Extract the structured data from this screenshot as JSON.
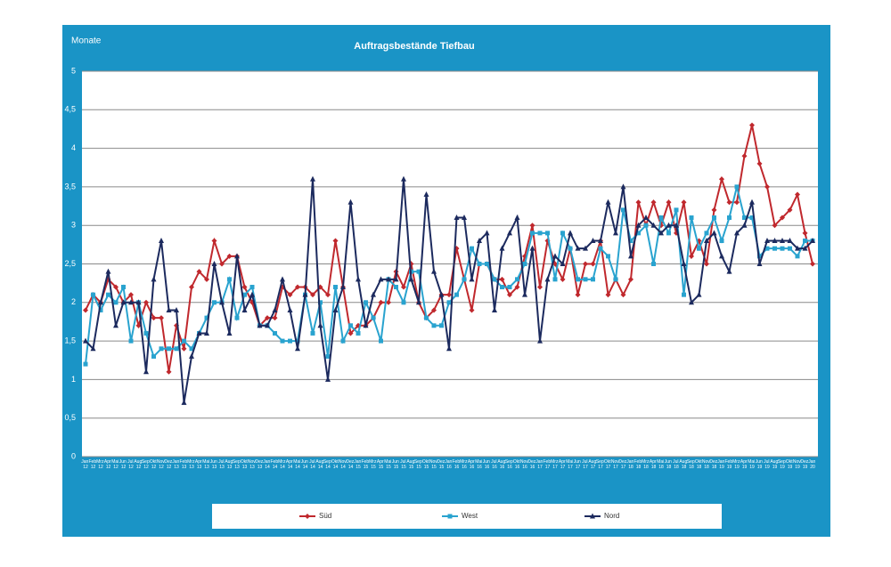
{
  "chart_data": {
    "type": "line",
    "title": "Auftragsbestände Tiefbau",
    "y_label": "Monate",
    "categories": [
      "Jan 12",
      "Feb 12",
      "Mrz 12",
      "Apr 12",
      "Mai 12",
      "Jun 12",
      "Jul 12",
      "Aug 12",
      "Sep 12",
      "Okt 12",
      "Nov 12",
      "Dez 12",
      "Jan 13",
      "Feb 13",
      "Mrz 13",
      "Apr 13",
      "Mai 13",
      "Jun 13",
      "Jul 13",
      "Aug 13",
      "Sep 13",
      "Okt 13",
      "Nov 13",
      "Dez 13",
      "Jan 14",
      "Feb 14",
      "Mrz 14",
      "Apr 14",
      "Mai 14",
      "Jun 14",
      "Jul 14",
      "Aug 14",
      "Sep 14",
      "Okt 14",
      "Nov 14",
      "Dez 14",
      "Jan 15",
      "Feb 15",
      "Mrz 15",
      "Apr 15",
      "Mai 15",
      "Jun 15",
      "Jul 15",
      "Aug 15",
      "Sep 15",
      "Okt 15",
      "Nov 15",
      "Dez 15",
      "Jan 16",
      "Feb 16",
      "Mrz 16",
      "Apr 16",
      "Mai 16",
      "Jun 16",
      "Jul 16",
      "Aug 16",
      "Sep 16",
      "Okt 16",
      "Nov 16",
      "Dez 16",
      "Jan 17",
      "Feb 17",
      "Mrz 17",
      "Apr 17",
      "Mai 17",
      "Jun 17",
      "Jul 17",
      "Aug 17",
      "Sep 17",
      "Okt 17",
      "Nov 17",
      "Dez 17",
      "Jan 18",
      "Feb 18",
      "Mrz 18",
      "Apr 18",
      "Mai 18",
      "Jun 18",
      "Jul 18",
      "Aug 18",
      "Sep 18",
      "Okt 18",
      "Nov 18",
      "Dez 18",
      "Jan 19",
      "Feb 19",
      "Mrz 19",
      "Apr 19",
      "Mai 19",
      "Jun 19",
      "Jul 19",
      "Aug 19",
      "Sep 19",
      "Okt 19",
      "Nov 19",
      "Dez 19",
      "Jan 20"
    ],
    "series": [
      {
        "name": "Süd",
        "color": "#c0282d",
        "marker": "diamond",
        "values": [
          1.9,
          2.1,
          2.0,
          2.3,
          2.2,
          2.0,
          2.1,
          1.7,
          2.0,
          1.8,
          1.8,
          1.1,
          1.7,
          1.4,
          2.2,
          2.4,
          2.3,
          2.8,
          2.5,
          2.6,
          2.6,
          2.2,
          2.0,
          1.7,
          1.8,
          1.8,
          2.2,
          2.1,
          2.2,
          2.2,
          2.1,
          2.2,
          2.1,
          2.8,
          2.2,
          1.6,
          1.7,
          1.7,
          1.8,
          2.0,
          2.0,
          2.4,
          2.2,
          2.5,
          2.0,
          1.8,
          1.9,
          2.1,
          2.1,
          2.7,
          2.3,
          1.9,
          2.5,
          2.5,
          2.3,
          2.3,
          2.1,
          2.2,
          2.6,
          3.0,
          2.2,
          2.8,
          2.5,
          2.3,
          2.7,
          2.1,
          2.5,
          2.5,
          2.8,
          2.1,
          2.3,
          2.1,
          2.3,
          3.3,
          3.0,
          3.3,
          3.0,
          3.3,
          2.9,
          3.3,
          2.6,
          2.8,
          2.5,
          3.2,
          3.6,
          3.3,
          3.3,
          3.9,
          4.3,
          3.8,
          3.5,
          3.0,
          3.1,
          3.2,
          3.4,
          2.9,
          2.5
        ]
      },
      {
        "name": "West",
        "color": "#29a3cf",
        "marker": "square",
        "values": [
          1.2,
          2.1,
          1.9,
          2.1,
          2.0,
          2.2,
          1.5,
          2.0,
          1.6,
          1.3,
          1.4,
          1.4,
          1.4,
          1.5,
          1.4,
          1.6,
          1.8,
          2.0,
          2.0,
          2.3,
          1.8,
          2.1,
          2.2,
          1.7,
          1.7,
          1.6,
          1.5,
          1.5,
          1.5,
          2.1,
          1.6,
          2.0,
          1.3,
          2.2,
          1.5,
          1.7,
          1.6,
          2.0,
          1.8,
          1.5,
          2.3,
          2.2,
          2.0,
          2.4,
          2.4,
          1.8,
          1.7,
          1.7,
          2.0,
          2.1,
          2.3,
          2.7,
          2.5,
          2.5,
          2.3,
          2.2,
          2.2,
          2.3,
          2.5,
          2.9,
          2.9,
          2.9,
          2.3,
          2.9,
          2.7,
          2.3,
          2.3,
          2.3,
          2.7,
          2.6,
          2.3,
          3.2,
          2.8,
          2.9,
          3.0,
          2.5,
          3.1,
          2.9,
          3.2,
          2.1,
          3.1,
          2.7,
          2.9,
          3.1,
          2.8,
          3.1,
          3.5,
          3.1,
          3.1,
          2.6,
          2.7,
          2.7,
          2.7,
          2.7,
          2.6,
          2.8,
          2.8
        ]
      },
      {
        "name": "Nord",
        "color": "#1c2a5e",
        "marker": "triangle",
        "values": [
          1.5,
          1.4,
          2.0,
          2.4,
          1.7,
          2.0,
          2.0,
          2.0,
          1.1,
          2.3,
          2.8,
          1.9,
          1.9,
          0.7,
          1.3,
          1.6,
          1.6,
          2.5,
          2.0,
          1.6,
          2.6,
          1.9,
          2.1,
          1.7,
          1.7,
          1.9,
          2.3,
          1.9,
          1.4,
          2.1,
          3.6,
          1.7,
          1.0,
          1.9,
          2.2,
          3.3,
          2.3,
          1.7,
          2.1,
          2.3,
          2.3,
          2.3,
          3.6,
          2.3,
          2.0,
          3.4,
          2.4,
          2.1,
          1.4,
          3.1,
          3.1,
          2.3,
          2.8,
          2.9,
          1.9,
          2.7,
          2.9,
          3.1,
          2.1,
          2.7,
          1.5,
          2.3,
          2.6,
          2.5,
          2.9,
          2.7,
          2.7,
          2.8,
          2.8,
          3.3,
          2.9,
          3.5,
          2.6,
          3.0,
          3.1,
          3.0,
          2.9,
          3.0,
          3.0,
          2.5,
          2.0,
          2.1,
          2.8,
          2.9,
          2.6,
          2.4,
          2.9,
          3.0,
          3.3,
          2.5,
          2.8,
          2.8,
          2.8,
          2.8,
          2.7,
          2.7,
          2.8
        ]
      }
    ],
    "ylim": [
      0,
      5
    ],
    "yticks": [
      0,
      {
        "value": 0.5,
        "label": "0,5"
      },
      1,
      {
        "value": 1.5,
        "label": "1,5"
      },
      2,
      {
        "value": 2.5,
        "label": "2,5"
      },
      3,
      {
        "value": 3.5,
        "label": "3,5"
      },
      4,
      {
        "value": 4.5,
        "label": "4,5"
      },
      5
    ],
    "grid": true,
    "legend": "bottom"
  }
}
